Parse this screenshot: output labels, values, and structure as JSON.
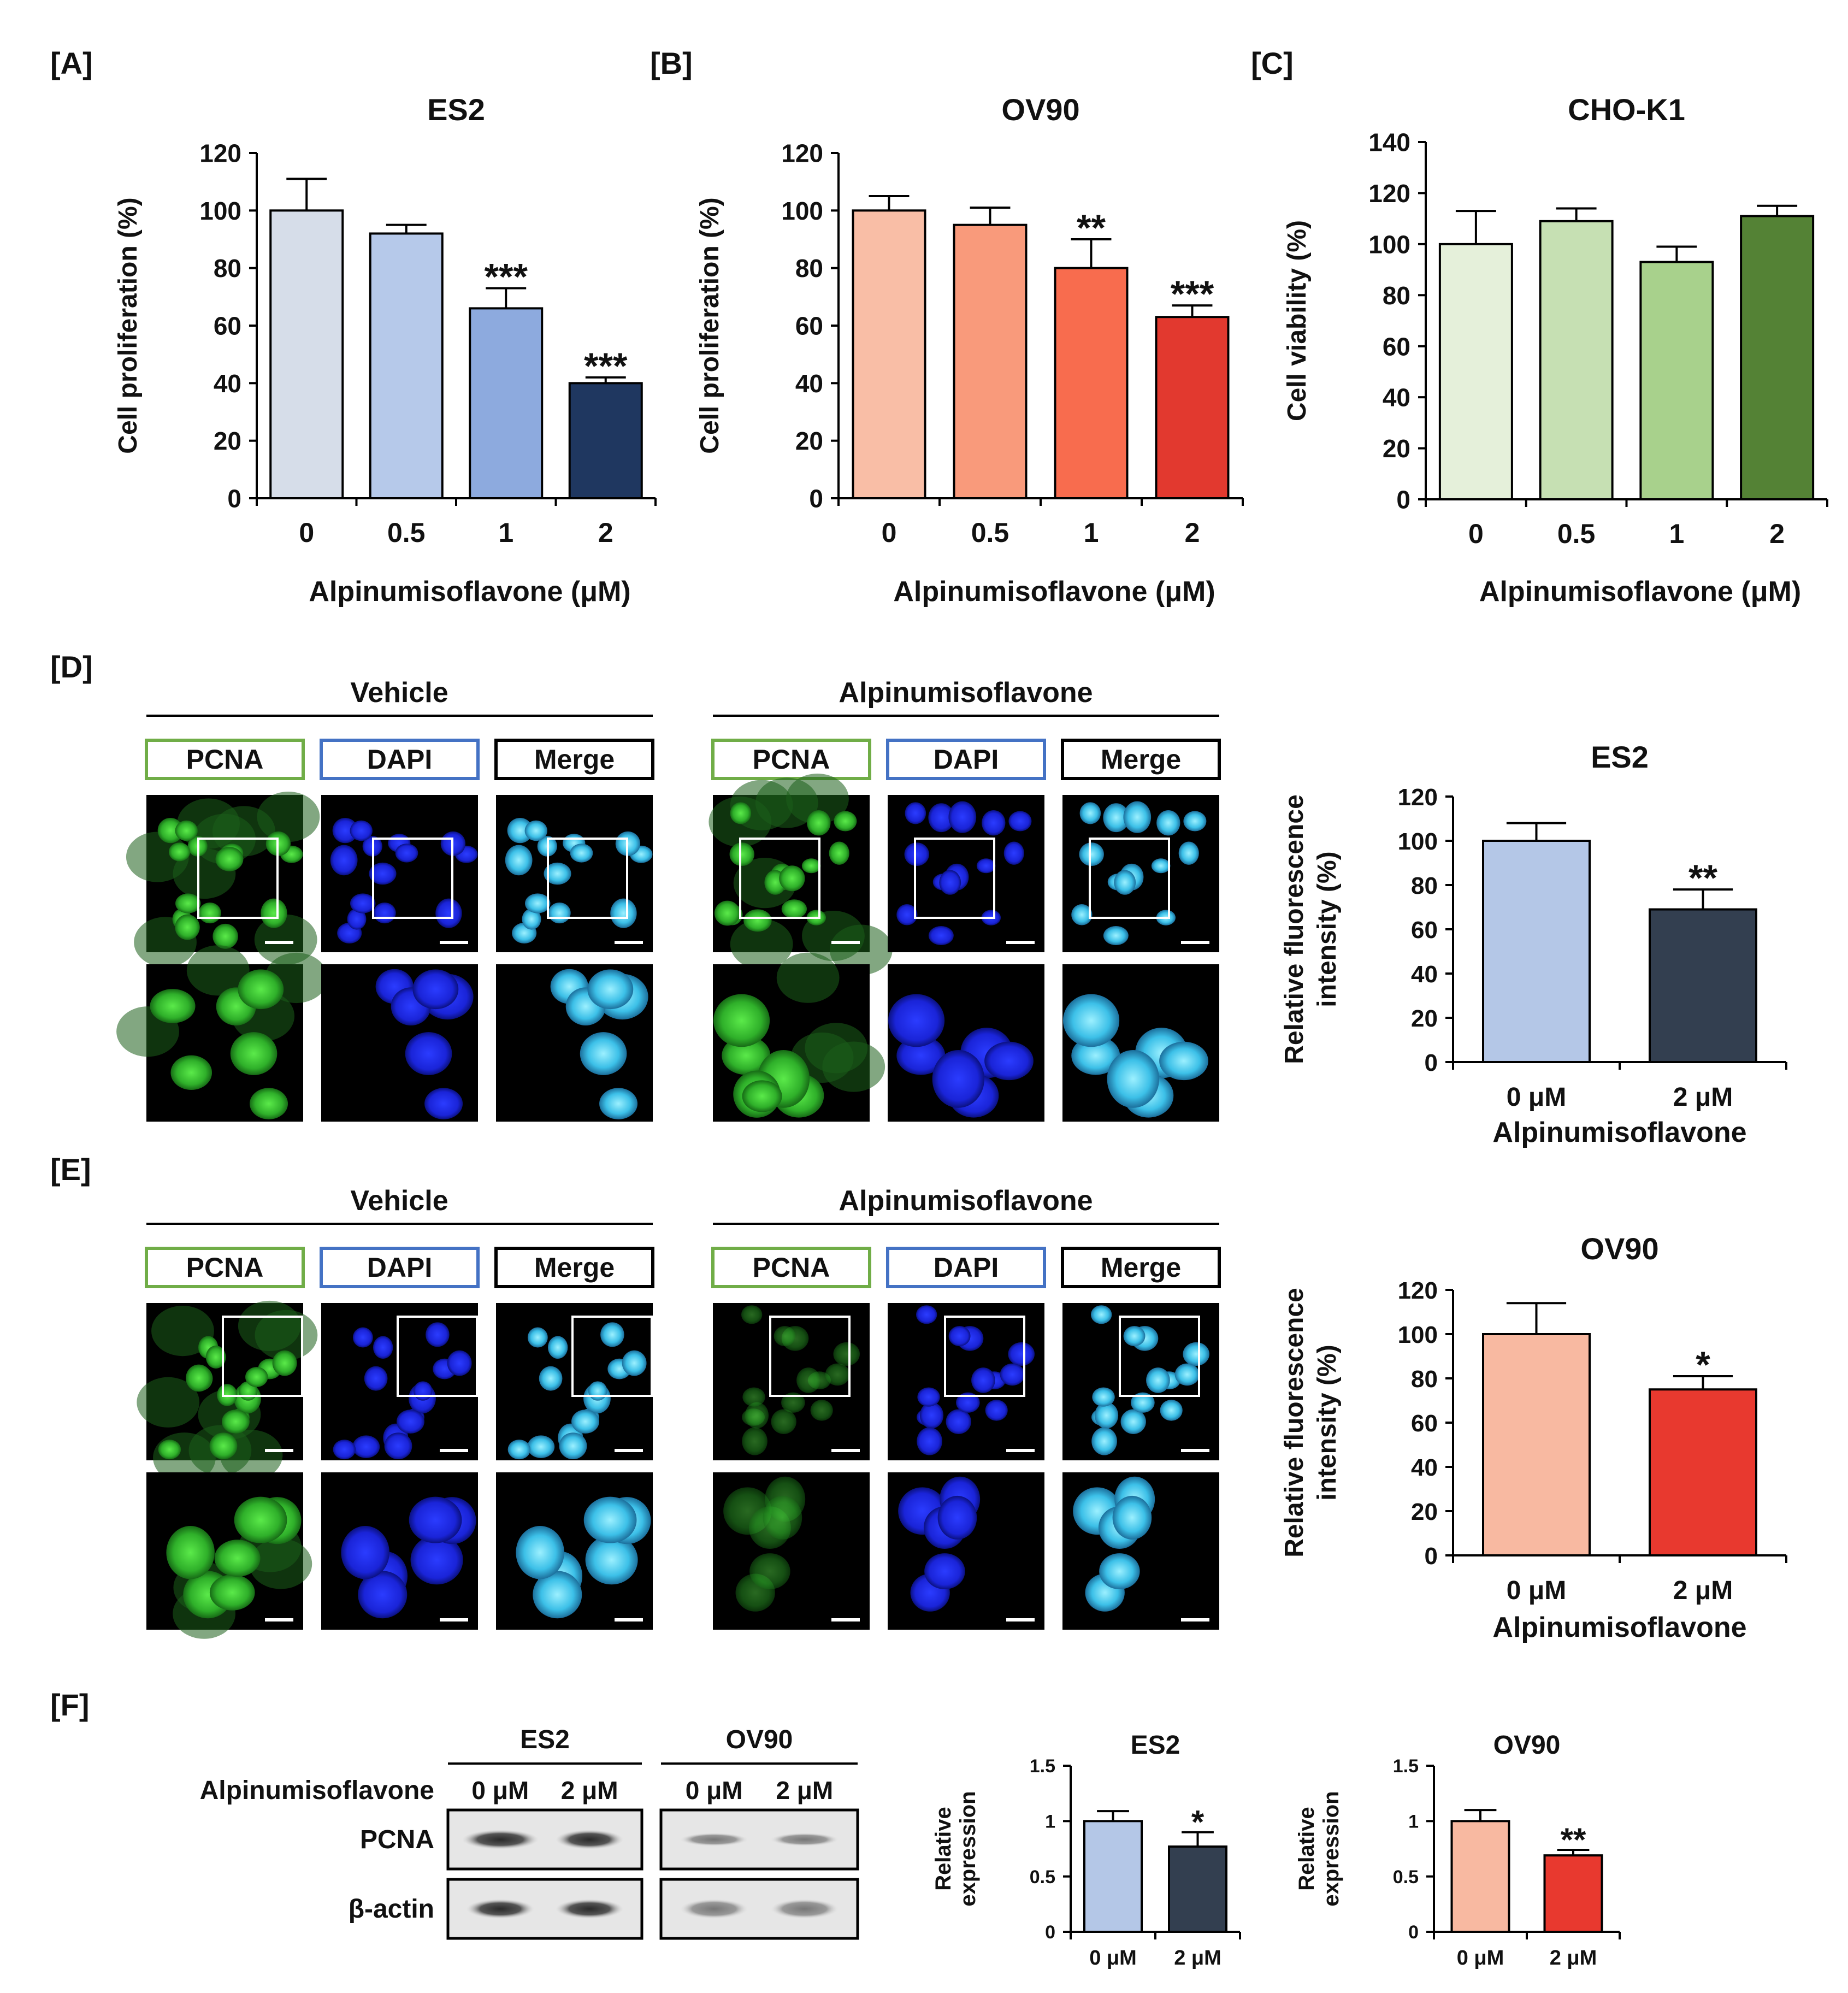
{
  "panel_labels": [
    "[A]",
    "[B]",
    "[C]",
    "[D]",
    "[E]",
    "[F]"
  ],
  "colors": {
    "es2": [
      "#d6dde9",
      "#b6c9ea",
      "#8daade",
      "#1f3760"
    ],
    "ov90": [
      "#f9bea6",
      "#f99a7b",
      "#f86c4e",
      "#e2392f"
    ],
    "cho": [
      "#e5f0da",
      "#c6e0b3",
      "#a8d18c",
      "#548235"
    ],
    "if_es2": [
      "#b4c7e7",
      "#333f50"
    ],
    "if_ov90": [
      "#f8b9a1",
      "#e8392f"
    ],
    "wb_es2": [
      "#b4c7e7",
      "#333f50"
    ],
    "wb_ov90": [
      "#f8b9a1",
      "#e8392f"
    ]
  },
  "chart_data": [
    {
      "panel": "[A]",
      "type": "bar",
      "title": "ES2",
      "xlabel": "Alpinumisoflavone (μM)",
      "ylabel": "Cell proliferation (%)",
      "categories": [
        "0",
        "0.5",
        "1",
        "2"
      ],
      "values": [
        100,
        92,
        66,
        40
      ],
      "errors": [
        11,
        3,
        7,
        2
      ],
      "annotations": [
        "",
        "",
        "***",
        "***"
      ],
      "ylim": [
        0,
        120
      ],
      "yticks": [
        0,
        20,
        40,
        60,
        80,
        100,
        120
      ]
    },
    {
      "panel": "[B]",
      "type": "bar",
      "title": "OV90",
      "xlabel": "Alpinumisoflavone (μM)",
      "ylabel": "Cell proliferation (%)",
      "categories": [
        "0",
        "0.5",
        "1",
        "2"
      ],
      "values": [
        100,
        95,
        80,
        63
      ],
      "errors": [
        5,
        6,
        10,
        4
      ],
      "annotations": [
        "",
        "",
        "**",
        "***"
      ],
      "ylim": [
        0,
        120
      ],
      "yticks": [
        0,
        20,
        40,
        60,
        80,
        100,
        120
      ]
    },
    {
      "panel": "[C]",
      "type": "bar",
      "title": "CHO-K1",
      "xlabel": "Alpinumisoflavone (μM)",
      "ylabel": "Cell viability (%)",
      "categories": [
        "0",
        "0.5",
        "1",
        "2"
      ],
      "values": [
        100,
        109,
        93,
        111
      ],
      "errors": [
        13,
        5,
        6,
        4
      ],
      "annotations": [
        "",
        "",
        "",
        ""
      ],
      "ylim": [
        0,
        140
      ],
      "yticks": [
        0,
        20,
        40,
        60,
        80,
        100,
        120,
        140
      ]
    },
    {
      "panel": "[D]",
      "type": "bar",
      "title": "ES2",
      "xlabel": "Alpinumisoflavone",
      "ylabel_lines": [
        "Relative fluorescence",
        "intensity (%)"
      ],
      "categories": [
        "0 μM",
        "2 μM"
      ],
      "values": [
        100,
        69
      ],
      "errors": [
        8,
        9
      ],
      "annotations": [
        "",
        "**"
      ],
      "ylim": [
        0,
        120
      ],
      "yticks": [
        0,
        20,
        40,
        60,
        80,
        100,
        120
      ]
    },
    {
      "panel": "[E]",
      "type": "bar",
      "title": "OV90",
      "xlabel": "Alpinumisoflavone",
      "ylabel_lines": [
        "Relative fluorescence",
        "intensity (%)"
      ],
      "categories": [
        "0 μM",
        "2 μM"
      ],
      "values": [
        100,
        75
      ],
      "errors": [
        14,
        6
      ],
      "annotations": [
        "",
        "*"
      ],
      "ylim": [
        0,
        120
      ],
      "yticks": [
        0,
        20,
        40,
        60,
        80,
        100,
        120
      ]
    },
    {
      "panel": "[F]",
      "type": "bar",
      "title": "ES2",
      "xlabel": "",
      "ylabel_lines": [
        "Relative",
        "expression"
      ],
      "categories": [
        "0 μM",
        "2 μM"
      ],
      "values": [
        1.0,
        0.77
      ],
      "errors": [
        0.09,
        0.13
      ],
      "annotations": [
        "",
        "*"
      ],
      "ylim": [
        0,
        1.5
      ],
      "yticks": [
        0,
        0.5,
        1,
        1.5
      ],
      "ytick_labels": [
        "0",
        "0.5",
        "1",
        "1.5"
      ]
    },
    {
      "panel": "[F]",
      "type": "bar",
      "title": "OV90",
      "xlabel": "",
      "ylabel_lines": [
        "Relative",
        "expression"
      ],
      "categories": [
        "0 μM",
        "2 μM"
      ],
      "values": [
        1.0,
        0.69
      ],
      "errors": [
        0.1,
        0.05
      ],
      "annotations": [
        "",
        "**"
      ],
      "ylim": [
        0,
        1.5
      ],
      "yticks": [
        0,
        0.5,
        1,
        1.5
      ],
      "ytick_labels": [
        "0",
        "0.5",
        "1",
        "1.5"
      ]
    }
  ],
  "microscopy": {
    "D": {
      "groups": [
        "Vehicle",
        "Alpinumisoflavone"
      ],
      "channels": [
        "PCNA",
        "DAPI",
        "Merge"
      ]
    },
    "E": {
      "groups": [
        "Vehicle",
        "Alpinumisoflavone"
      ],
      "channels": [
        "PCNA",
        "DAPI",
        "Merge"
      ]
    }
  },
  "western_blot": {
    "cell_lines": [
      "ES2",
      "OV90"
    ],
    "treatment_label": "Alpinumisoflavone",
    "lanes": [
      "0 μM",
      "2 μM"
    ],
    "rows": [
      "PCNA",
      "β-actin"
    ]
  }
}
